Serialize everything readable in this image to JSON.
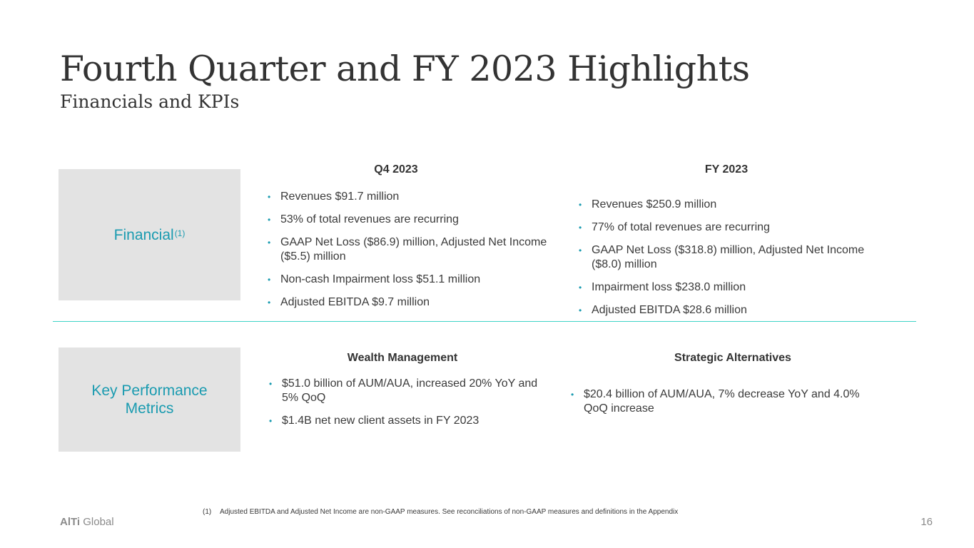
{
  "title": "Fourth Quarter and FY 2023 Highlights",
  "subtitle": "Financials and KPIs",
  "financial": {
    "label": "Financial",
    "label_sup": "(1)",
    "q4": {
      "heading": "Q4 2023",
      "bullets": [
        "Revenues $91.7 million",
        "53% of total revenues are recurring",
        "GAAP Net Loss ($86.9) million, Adjusted Net Income ($5.5) million",
        "Non-cash Impairment loss $51.1 million",
        "Adjusted EBITDA $9.7 million"
      ]
    },
    "fy": {
      "heading": "FY 2023",
      "bullets": [
        "Revenues $250.9 million",
        "77% of total revenues are recurring",
        "GAAP Net Loss ($318.8) million, Adjusted Net Income ($8.0) million",
        "Impairment loss $238.0 million",
        "Adjusted EBITDA $28.6 million"
      ]
    }
  },
  "kpi": {
    "label": "Key Performance Metrics",
    "wealth": {
      "heading": "Wealth Management",
      "bullets": [
        "$51.0 billion of AUM/AUA, increased 20% YoY and 5% QoQ",
        "$1.4B net new client assets in FY 2023"
      ]
    },
    "strategic": {
      "heading": "Strategic Alternatives",
      "bullets": [
        "$20.4 billion of AUM/AUA, 7% decrease YoY and 4.0% QoQ increase"
      ]
    }
  },
  "footnote": {
    "number": "(1)",
    "text": "Adjusted EBITDA and Adjusted Net Income are non-GAAP measures. See reconciliations of non-GAAP measures and definitions in the Appendix"
  },
  "logo": {
    "bold": "AlTi",
    "rest": "Global"
  },
  "page_number": "16",
  "colors": {
    "accent": "#1a9bb0",
    "divider": "#3fd3c7",
    "box": "#e3e3e3"
  }
}
